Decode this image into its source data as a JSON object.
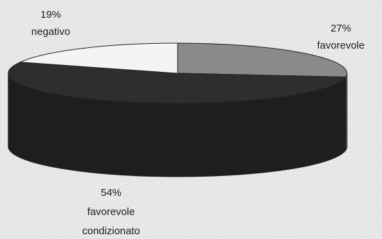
{
  "chart_data": {
    "type": "pie",
    "style": "3d",
    "title": "",
    "slices": [
      {
        "percent_label": "27%",
        "label": "favorevole",
        "value": 27,
        "color": "#8a8a8a",
        "side_color": "#5a5a5a"
      },
      {
        "percent_label": "54%",
        "label": "favorevole condizionato",
        "label_lines": [
          "favorevole",
          "condizionato"
        ],
        "value": 54,
        "color": "#2e2e2e",
        "side_color": "#1e1e1e"
      },
      {
        "percent_label": "19%",
        "label": "negativo",
        "value": 19,
        "color": "#f4f4f4",
        "side_color": "#cfcfcf"
      }
    ]
  }
}
